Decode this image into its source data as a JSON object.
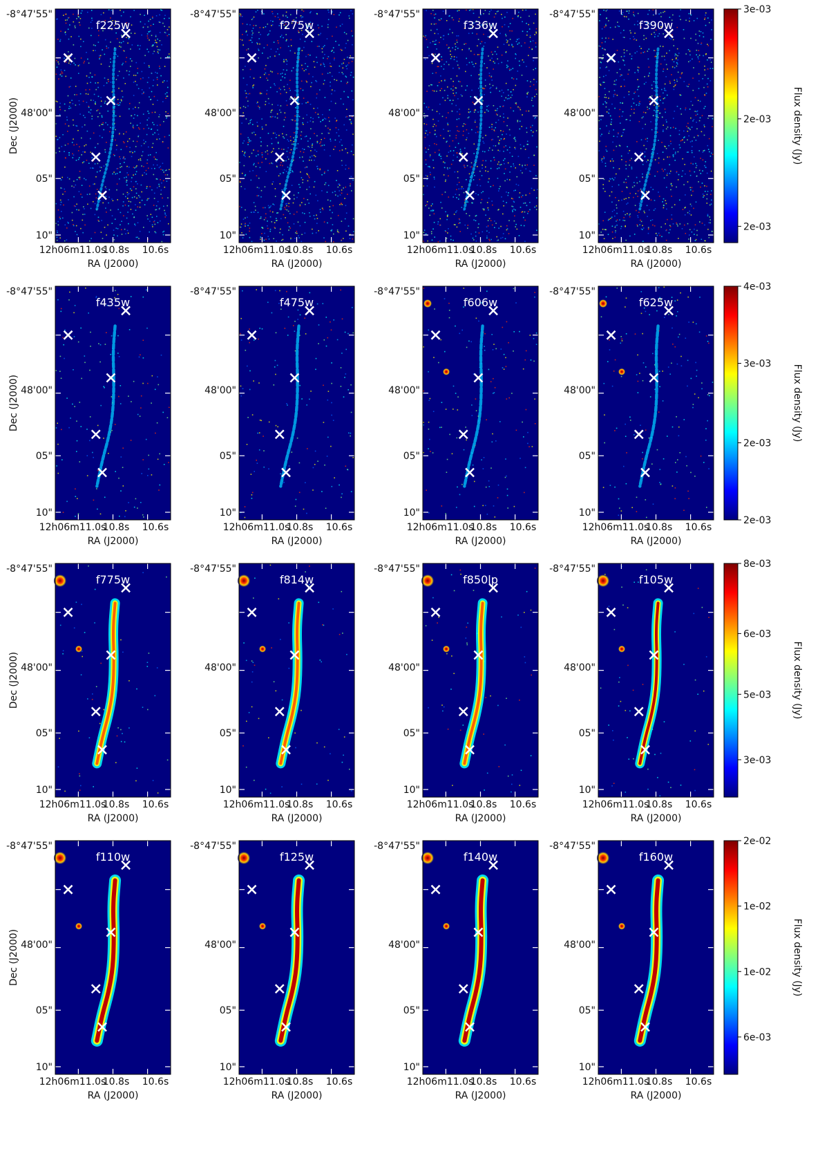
{
  "tick_labels": {
    "dec": [
      "-8°47'55\"",
      "48'00\"",
      "05\"",
      "10\""
    ],
    "ra_first": "12h06m11.0s",
    "ra": [
      "10.8s",
      "10.6s"
    ]
  },
  "axis_labels": {
    "x": "RA (J2000)",
    "y": "Dec (J2000)",
    "colorbar": "Flux density (Jy)"
  },
  "rows": [
    {
      "panels": [
        "f225w",
        "f275w",
        "f336w",
        "f390w"
      ],
      "colorbar": {
        "ticks": [
          "3e-03",
          "2e-03",
          "2e-03"
        ],
        "tick_fracs": [
          1.0,
          0.53,
          0.07
        ]
      },
      "arc_intensity": 0.45,
      "noise": "high"
    },
    {
      "panels": [
        "f435w",
        "f475w",
        "f606w",
        "f625w"
      ],
      "colorbar": {
        "ticks": [
          "4e-03",
          "3e-03",
          "2e-03",
          "2e-03"
        ],
        "tick_fracs": [
          1.0,
          0.67,
          0.33,
          0.0
        ]
      },
      "arc_intensity": 0.6,
      "noise": "medium"
    },
    {
      "panels": [
        "f775w",
        "f814w",
        "f850lp",
        "f105w"
      ],
      "colorbar": {
        "ticks": [
          "8e-03",
          "6e-03",
          "5e-03",
          "3e-03"
        ],
        "tick_fracs": [
          1.0,
          0.7,
          0.44,
          0.16
        ]
      },
      "arc_intensity": 0.85,
      "noise": "low"
    },
    {
      "panels": [
        "f110w",
        "f125w",
        "f140w",
        "f160w"
      ],
      "colorbar": {
        "ticks": [
          "2e-02",
          "1e-02",
          "1e-02",
          "6e-03"
        ],
        "tick_fracs": [
          1.0,
          0.72,
          0.44,
          0.16
        ]
      },
      "arc_intensity": 1.0,
      "noise": "none"
    }
  ],
  "markers": [
    {
      "ra": 10.98,
      "dec_offset": 1.4
    },
    {
      "ra": 10.71,
      "dec_offset": -0.2
    },
    {
      "ra": 10.78,
      "dec_offset": 4.2
    },
    {
      "ra": 10.85,
      "dec_offset": 7.9
    },
    {
      "ra": 10.82,
      "dec_offset": 10.4
    }
  ],
  "colors": {
    "background": "#00007f",
    "marker": "#ffffff"
  }
}
